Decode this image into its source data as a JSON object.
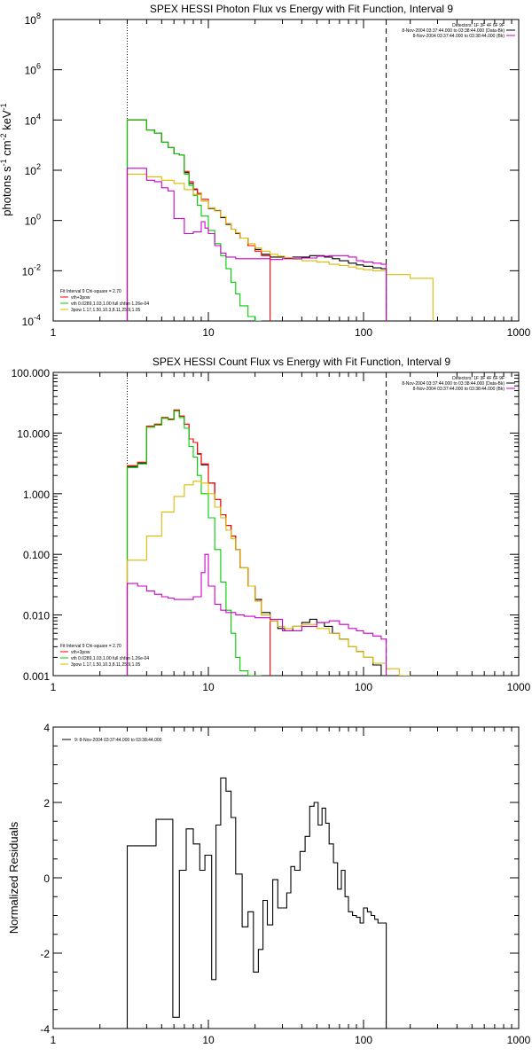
{
  "chart_data": [
    {
      "id": "photon",
      "type": "line",
      "title": "SPEX HESSI Photon Flux vs Energy with Fit Function, Interval 9",
      "ylabel_parts": [
        "photons s",
        "-1",
        " cm",
        "-2",
        " keV",
        "-1"
      ],
      "xlabel": "",
      "xscale": "log",
      "yscale": "log",
      "xlim": [
        1,
        1000
      ],
      "ylim": [
        0.0001,
        100000000
      ],
      "x_ticks": [
        1,
        10,
        100,
        1000
      ],
      "x_tick_labels": [
        "1",
        "10",
        "100",
        "1000"
      ],
      "y_ticks": [
        0.0001,
        0.01,
        1,
        100,
        10000,
        1000000,
        100000000
      ],
      "y_tick_bases": [
        "10",
        "10",
        "10",
        "10",
        "10",
        "10",
        "10"
      ],
      "y_tick_exps": [
        "-4",
        "-2",
        "0",
        "2",
        "4",
        "6",
        "8"
      ],
      "vlines": [
        {
          "x": 3,
          "style": "dotted"
        },
        {
          "x": 140,
          "style": "dashed"
        }
      ],
      "legend_left": [
        "Fit Interval 9   Chi-square = 2.70",
        "vth+3pow",
        "vth 0.0289,1.03,1.00  full chfan 1.26e-04",
        "3pow 1.17,1.50,10.3,8.11,25.9,1.05"
      ],
      "legend_left_colors": [
        "",
        "#ff0000",
        "#00cc00",
        "#ddbb00"
      ],
      "legend_right": [
        "Detectors: 1F 3F 4F 6F 9F",
        "8-Nov-2004 03:37:44.000 to 03:38:44.000 (Data-Bk)",
        "8-Nov-2004 03:37:44.000 to 03:38:44.000 (Bk)"
      ],
      "legend_right_colors": [
        "",
        "#000000",
        "#cc00cc"
      ],
      "series": [
        {
          "color": "#000000",
          "edges": [
            3,
            3.5,
            4,
            4.5,
            5,
            5.5,
            6,
            6.5,
            7,
            7.5,
            8,
            8.5,
            9,
            10,
            11,
            12,
            13,
            14,
            15,
            16,
            18,
            20,
            22,
            25,
            28,
            31,
            35,
            40,
            45,
            50,
            56,
            63,
            70,
            80,
            90,
            100,
            115,
            130,
            140
          ],
          "values": [
            10000,
            10000,
            4000,
            3000,
            1300,
            800,
            450,
            400,
            80,
            30,
            17,
            11,
            6,
            3,
            2.5,
            1.3,
            0.7,
            0.45,
            0.3,
            0.2,
            0.1,
            0.07,
            0.045,
            0.035,
            0.035,
            0.032,
            0.035,
            0.035,
            0.04,
            0.04,
            0.035,
            0.03,
            0.025,
            0.02,
            0.017,
            0.015,
            0.013,
            0.012
          ]
        },
        {
          "color": "#ff0000",
          "edges": [
            3,
            3.5,
            4,
            4.5,
            5,
            5.5,
            6,
            6.5,
            7,
            7.5,
            8,
            8.5,
            9,
            10,
            11,
            12,
            13,
            14,
            15,
            16,
            18,
            20,
            22,
            25
          ],
          "values": [
            10000,
            10000,
            4000,
            3000,
            1300,
            800,
            450,
            400,
            90,
            35,
            18,
            12,
            7,
            3.2,
            2.4,
            1.4,
            0.75,
            0.45,
            0.32,
            0.2,
            0.1,
            0.06,
            0.04
          ]
        },
        {
          "color": "#00cc00",
          "edges": [
            3,
            3.5,
            4,
            4.5,
            5,
            5.5,
            6,
            6.5,
            7,
            7.5,
            8,
            8.5,
            9,
            10,
            11,
            12,
            13,
            14,
            15,
            16,
            18,
            20,
            22
          ],
          "values": [
            10000,
            10000,
            4000,
            3000,
            1300,
            800,
            450,
            400,
            70,
            25,
            10,
            4,
            1.5,
            0.4,
            0.12,
            0.04,
            0.012,
            0.0035,
            0.0012,
            0.0004,
            0.00015,
            0.0001
          ]
        },
        {
          "color": "#ddbb00",
          "edges": [
            3,
            4,
            5,
            6,
            7,
            8,
            9,
            10,
            11,
            12,
            13,
            14,
            15,
            16,
            18,
            20,
            22,
            25,
            28,
            31,
            35,
            40,
            50,
            60,
            70,
            80,
            90,
            100,
            115,
            140,
            200,
            280
          ],
          "values": [
            70,
            55,
            40,
            30,
            17,
            11,
            6,
            3.2,
            2.4,
            1.4,
            0.75,
            0.45,
            0.32,
            0.2,
            0.12,
            0.08,
            0.06,
            0.045,
            0.038,
            0.033,
            0.029,
            0.025,
            0.022,
            0.018,
            0.016,
            0.014,
            0.012,
            0.011,
            0.01,
            0.007,
            0.005
          ]
        },
        {
          "color": "#cc00cc",
          "edges": [
            3,
            3.5,
            4,
            4.5,
            5,
            5.5,
            6,
            7,
            8,
            9,
            9.5,
            10,
            11,
            12,
            13,
            15,
            17,
            20,
            25,
            30,
            40,
            50,
            60,
            70,
            80,
            90,
            100,
            115,
            130,
            140
          ],
          "values": [
            120,
            120,
            40,
            35,
            20,
            15,
            1.2,
            0.3,
            0.35,
            0.9,
            0.5,
            0.3,
            0.1,
            0.05,
            0.035,
            0.03,
            0.03,
            0.03,
            0.028,
            0.03,
            0.032,
            0.038,
            0.04,
            0.04,
            0.035,
            0.025,
            0.022,
            0.02,
            0.018
          ]
        }
      ]
    },
    {
      "id": "count",
      "type": "line",
      "title": "SPEX HESSI Count Flux vs Energy with Fit Function, Interval 9",
      "xlabel": "",
      "xscale": "log",
      "yscale": "log",
      "xlim": [
        1,
        1000
      ],
      "ylim": [
        0.001,
        100
      ],
      "x_ticks": [
        1,
        10,
        100,
        1000
      ],
      "x_tick_labels": [
        "1",
        "10",
        "100",
        "1000"
      ],
      "y_ticks": [
        0.001,
        0.01,
        0.1,
        1,
        10,
        100
      ],
      "y_tick_labels": [
        "0.001",
        "0.010",
        "0.100",
        "1.000",
        "10.000",
        "100.000"
      ],
      "vlines": [
        {
          "x": 3,
          "style": "dotted"
        },
        {
          "x": 140,
          "style": "dashed"
        }
      ],
      "legend_left": [
        "Fit Interval 9   Chi-square = 2.70",
        "vth+3pow",
        "vth 0.0289,1.03,1.00  full chfan 1.26e-04",
        "3pow 1.17,1.50,10.3,8.11,25.9,1.05"
      ],
      "legend_left_colors": [
        "",
        "#ff0000",
        "#00cc00",
        "#ddbb00"
      ],
      "legend_right": [
        "Detectors: 1F 3F 4F 6F 9F",
        "8-Nov-2004 03:37:44.000 to 03:38:44.000 (Data-Bk)",
        "8-Nov-2004 03:37:44.000 to 03:38:44.000 (Bk)"
      ],
      "legend_right_colors": [
        "",
        "#000000",
        "#cc00cc"
      ],
      "series": [
        {
          "color": "#000000",
          "edges": [
            3,
            3.5,
            4,
            4.5,
            5,
            5.5,
            6,
            6.5,
            7,
            7.5,
            8,
            8.5,
            9,
            10,
            11,
            12,
            13,
            14,
            15,
            16,
            18,
            20,
            22,
            25,
            28,
            31,
            35,
            40,
            45,
            50,
            56,
            63,
            70,
            80,
            90,
            100,
            115,
            130,
            140
          ],
          "values": [
            2.8,
            3.2,
            13,
            14,
            18,
            17,
            24,
            19,
            14,
            8,
            7,
            4.5,
            3,
            1.5,
            0.8,
            0.45,
            0.3,
            0.2,
            0.12,
            0.06,
            0.03,
            0.018,
            0.011,
            0.008,
            0.006,
            0.0055,
            0.0065,
            0.0075,
            0.0085,
            0.0075,
            0.0065,
            0.005,
            0.004,
            0.003,
            0.0025,
            0.002,
            0.0015,
            0.001
          ]
        },
        {
          "color": "#ff0000",
          "edges": [
            3,
            3.5,
            4,
            4.5,
            5,
            5.5,
            6,
            6.5,
            7,
            7.5,
            8,
            8.5,
            9,
            10,
            11,
            12,
            13,
            14,
            15,
            16,
            18,
            20,
            22,
            25
          ],
          "values": [
            2.9,
            3.3,
            13,
            14,
            18,
            17,
            24,
            19,
            14,
            8,
            7,
            4.6,
            3.1,
            1.5,
            0.8,
            0.45,
            0.3,
            0.2,
            0.12,
            0.06,
            0.03,
            0.017,
            0.01
          ]
        },
        {
          "color": "#00cc00",
          "edges": [
            3,
            3.5,
            4,
            4.5,
            5,
            5.5,
            6,
            6.5,
            7,
            7.5,
            8,
            8.5,
            9,
            10,
            11,
            12,
            13,
            14,
            15,
            16,
            18,
            20,
            22
          ],
          "values": [
            2.7,
            3.1,
            12.5,
            13.5,
            17.5,
            16.5,
            23,
            18,
            12,
            6,
            4,
            2,
            1,
            0.4,
            0.12,
            0.035,
            0.012,
            0.005,
            0.002,
            0.0012,
            0.001,
            0.001
          ]
        },
        {
          "color": "#ddbb00",
          "edges": [
            3,
            4,
            5,
            6,
            7,
            8,
            9,
            10,
            11,
            12,
            13,
            14,
            15,
            16,
            18,
            20,
            22,
            25,
            28,
            31,
            35,
            40,
            50,
            60,
            70,
            80,
            90,
            100,
            115,
            140,
            170,
            200
          ],
          "values": [
            0.08,
            0.2,
            0.5,
            0.9,
            1.4,
            1.6,
            1.5,
            1.0,
            0.6,
            0.4,
            0.25,
            0.18,
            0.12,
            0.06,
            0.03,
            0.017,
            0.01,
            0.008,
            0.0065,
            0.006,
            0.0065,
            0.007,
            0.006,
            0.005,
            0.004,
            0.003,
            0.0025,
            0.002,
            0.0016,
            0.0013,
            0.001
          ]
        },
        {
          "color": "#cc00cc",
          "edges": [
            3,
            3.5,
            4,
            4.5,
            5,
            5.5,
            6,
            7,
            8,
            9,
            9.5,
            10,
            11,
            12,
            13,
            15,
            17,
            20,
            25,
            30,
            40,
            50,
            60,
            70,
            80,
            90,
            100,
            115,
            130,
            140
          ],
          "values": [
            0.033,
            0.03,
            0.025,
            0.022,
            0.02,
            0.019,
            0.018,
            0.018,
            0.02,
            0.05,
            0.1,
            0.03,
            0.015,
            0.012,
            0.011,
            0.01,
            0.0095,
            0.009,
            0.0085,
            0.0055,
            0.0065,
            0.0075,
            0.008,
            0.007,
            0.006,
            0.0055,
            0.005,
            0.0045,
            0.004
          ]
        }
      ]
    },
    {
      "id": "residuals",
      "type": "line",
      "title": "",
      "ylabel": "Normalized Residuals",
      "xlabel": "",
      "xscale": "log",
      "yscale": "linear",
      "xlim": [
        1,
        1000
      ],
      "ylim": [
        -4,
        4
      ],
      "x_ticks": [
        1,
        10,
        100,
        1000
      ],
      "x_tick_labels": [
        "1",
        "10",
        "100",
        "1000"
      ],
      "y_ticks": [
        -4,
        -2,
        0,
        2,
        4
      ],
      "y_tick_labels": [
        "-4",
        "-2",
        "0",
        "2",
        "4"
      ],
      "legend_label": "9:  8-Nov-2004 03:37:44.000 to 03:38:44.000",
      "series": [
        {
          "color": "#000000",
          "edges": [
            3,
            4,
            4.6,
            5.2,
            5.9,
            6.5,
            7.2,
            8,
            8.8,
            9.5,
            10.5,
            11.2,
            12,
            13,
            14,
            15,
            16.5,
            18,
            19.5,
            21,
            22.5,
            24,
            26,
            28,
            30,
            32,
            34,
            36,
            39,
            42,
            45,
            48,
            51,
            54,
            57,
            60,
            64,
            68,
            72,
            76,
            80,
            85,
            90,
            95,
            100,
            106,
            112,
            118,
            124,
            130,
            140
          ],
          "values": [
            0.85,
            0.85,
            1.55,
            1.55,
            -3.7,
            0.2,
            1.3,
            0.9,
            0.2,
            0.6,
            -2.7,
            1.4,
            2.65,
            2.3,
            1.6,
            0.1,
            -1.3,
            -0.9,
            -2.5,
            -1.9,
            -0.6,
            -1.25,
            -0.05,
            -0.8,
            -0.8,
            -0.4,
            0.3,
            0.2,
            0.7,
            1.1,
            1.9,
            2.0,
            1.4,
            1.85,
            1.45,
            0.9,
            0.4,
            -0.3,
            0.2,
            -0.5,
            -0.9,
            -1.0,
            -1.05,
            -1.2,
            -0.8,
            -0.9,
            -1.0,
            -1.1,
            -1.2,
            -1.2
          ]
        }
      ]
    }
  ]
}
